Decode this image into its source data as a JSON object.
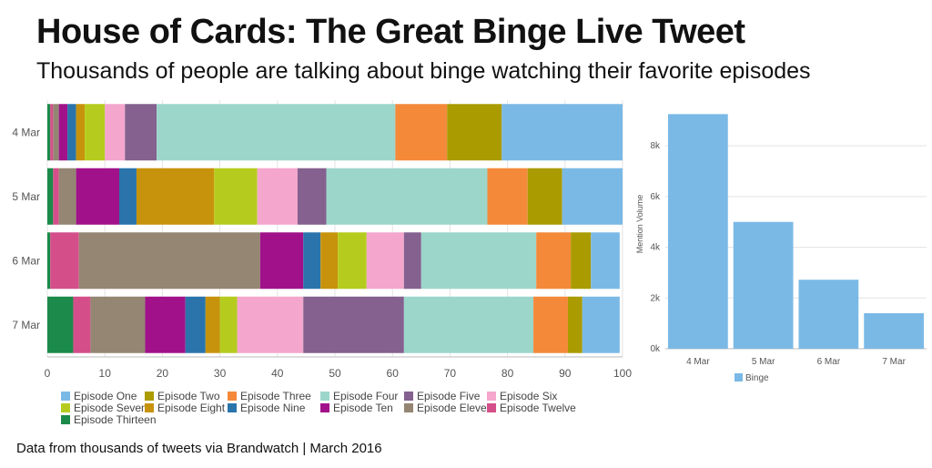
{
  "header": {
    "title": "House of Cards: The Great Binge Live Tweet",
    "subtitle": "Thousands of people are talking about binge watching their favorite episodes"
  },
  "footer": {
    "source": "Data from thousands of tweets via Brandwatch | March 2016"
  },
  "chart_data": [
    {
      "type": "bar",
      "orientation": "horizontal",
      "stacked": true,
      "categories": [
        "4 Mar",
        "5 Mar",
        "6 Mar",
        "7 Mar"
      ],
      "xlim": [
        0,
        100
      ],
      "xticks": [
        "0",
        "10",
        "20",
        "30",
        "40",
        "50",
        "60",
        "70",
        "80",
        "90",
        "100"
      ],
      "grid": true,
      "legend_position": "bottom-left",
      "series": [
        {
          "name": "Episode Thirteen",
          "color": "#1b8a4a",
          "values": [
            0.5,
            1.0,
            0.5,
            4.5
          ]
        },
        {
          "name": "Episode Twelve",
          "color": "#d44f8a",
          "values": [
            0.5,
            1.0,
            5.0,
            3.0
          ]
        },
        {
          "name": "Episode Eleven",
          "color": "#948672",
          "values": [
            1.0,
            3.0,
            31.5,
            9.5
          ]
        },
        {
          "name": "Episode Ten",
          "color": "#a1128a",
          "values": [
            1.5,
            7.5,
            7.5,
            7.0
          ]
        },
        {
          "name": "Episode Nine",
          "color": "#2a74ab",
          "values": [
            1.5,
            3.0,
            3.0,
            3.5
          ]
        },
        {
          "name": "Episode Eight",
          "color": "#c8930c",
          "values": [
            1.5,
            13.5,
            3.0,
            2.5
          ]
        },
        {
          "name": "Episode Seven",
          "color": "#b5cc1e",
          "values": [
            3.5,
            7.5,
            5.0,
            3.0
          ]
        },
        {
          "name": "Episode Six",
          "color": "#f4a6cc",
          "values": [
            3.5,
            7.0,
            6.5,
            11.5
          ]
        },
        {
          "name": "Episode Five",
          "color": "#84618e",
          "values": [
            5.5,
            5.0,
            3.0,
            17.5
          ]
        },
        {
          "name": "Episode Four",
          "color": "#9cd6cb",
          "values": [
            41.5,
            28.0,
            20.0,
            22.5
          ]
        },
        {
          "name": "Episode Three",
          "color": "#f4893a",
          "values": [
            9.0,
            7.0,
            6.0,
            6.0
          ]
        },
        {
          "name": "Episode Two",
          "color": "#aa9b00",
          "values": [
            9.5,
            6.0,
            3.5,
            2.5
          ]
        },
        {
          "name": "Episode One",
          "color": "#7ab9e6",
          "values": [
            21.0,
            10.5,
            5.0,
            6.5
          ]
        }
      ],
      "legend": [
        "Episode One",
        "Episode Two",
        "Episode Three",
        "Episode Four",
        "Episode Five",
        "Episode Six",
        "Episode Seven",
        "Episode Eight",
        "Episode Nine",
        "Episode Ten",
        "Episode Eleven",
        "Episode Twelve",
        "Episode Thirteen"
      ]
    },
    {
      "type": "bar",
      "categories": [
        "4 Mar",
        "5 Mar",
        "6 Mar",
        "7 Mar"
      ],
      "series": [
        {
          "name": "Binge",
          "color": "#7ab9e6",
          "values": [
            9250,
            5000,
            2720,
            1400
          ]
        }
      ],
      "ylabel": "Mention Volume",
      "ylim": [
        0,
        9800
      ],
      "yticks": [
        {
          "value": 0,
          "label": "0k"
        },
        {
          "value": 2000,
          "label": "2k"
        },
        {
          "value": 4000,
          "label": "4k"
        },
        {
          "value": 6000,
          "label": "6k"
        },
        {
          "value": 8000,
          "label": "8k"
        }
      ],
      "grid": true,
      "legend_position": "bottom-center"
    }
  ]
}
